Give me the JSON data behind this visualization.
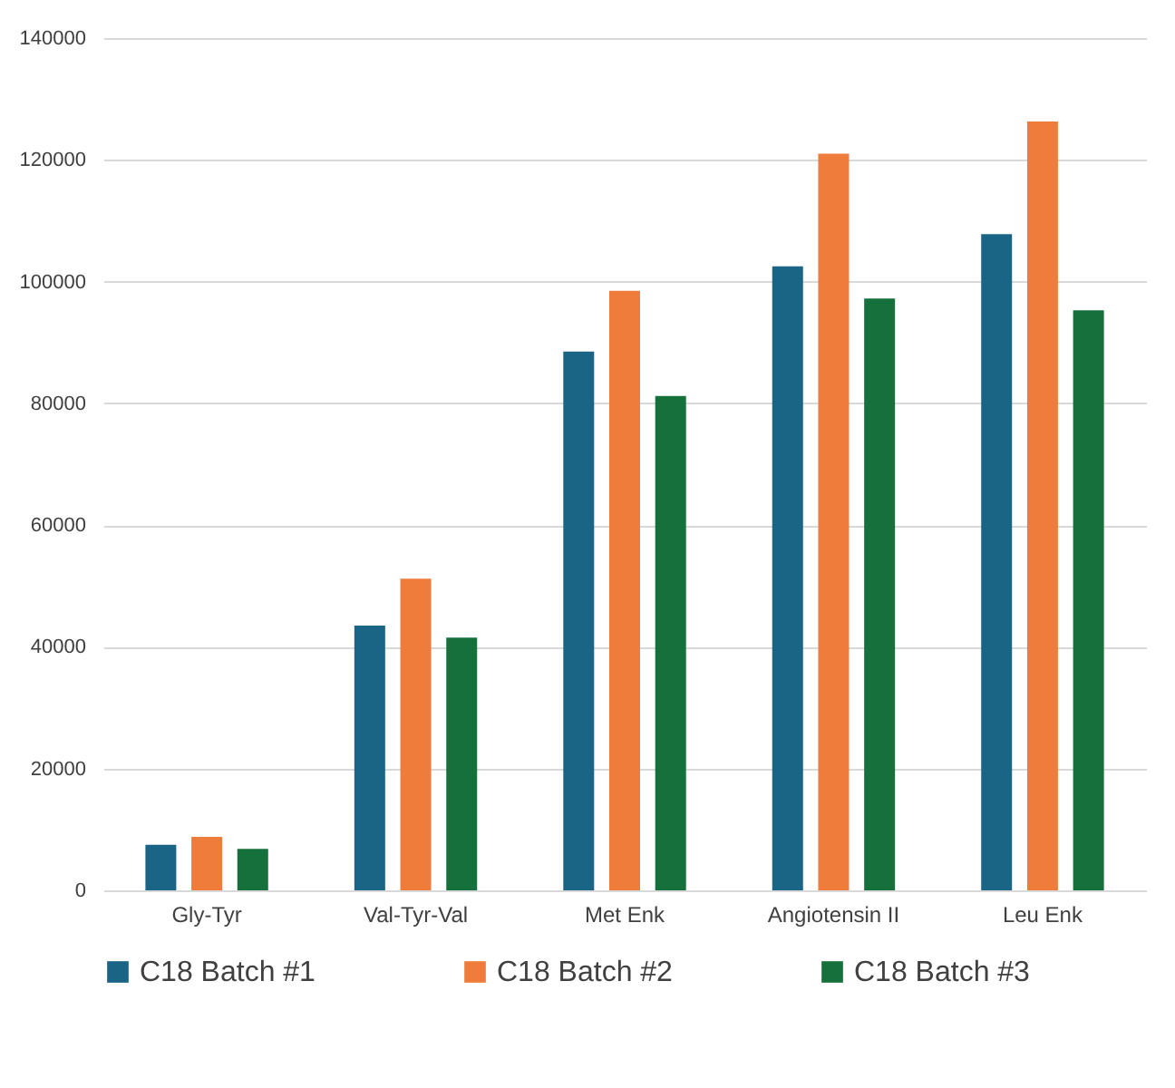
{
  "chart_data": {
    "type": "bar",
    "categories": [
      "Gly-Tyr",
      "Val-Tyr-Val",
      "Met Enk",
      "Angiotensin II",
      "Leu Enk"
    ],
    "series": [
      {
        "name": "C18 Batch #1",
        "color": "#1a6585",
        "values": [
          7500,
          43500,
          88500,
          102500,
          107800
        ]
      },
      {
        "name": "C18 Batch #2",
        "color": "#f07c3c",
        "values": [
          8800,
          51200,
          98500,
          121000,
          126300
        ]
      },
      {
        "name": "C18 Batch #3",
        "color": "#16703c",
        "values": [
          6800,
          41500,
          81200,
          97200,
          95300
        ]
      }
    ],
    "ylim": [
      0,
      140000
    ],
    "yticks": [
      0,
      20000,
      40000,
      60000,
      80000,
      100000,
      120000,
      140000
    ],
    "grid": "y",
    "legend": "bottom"
  }
}
